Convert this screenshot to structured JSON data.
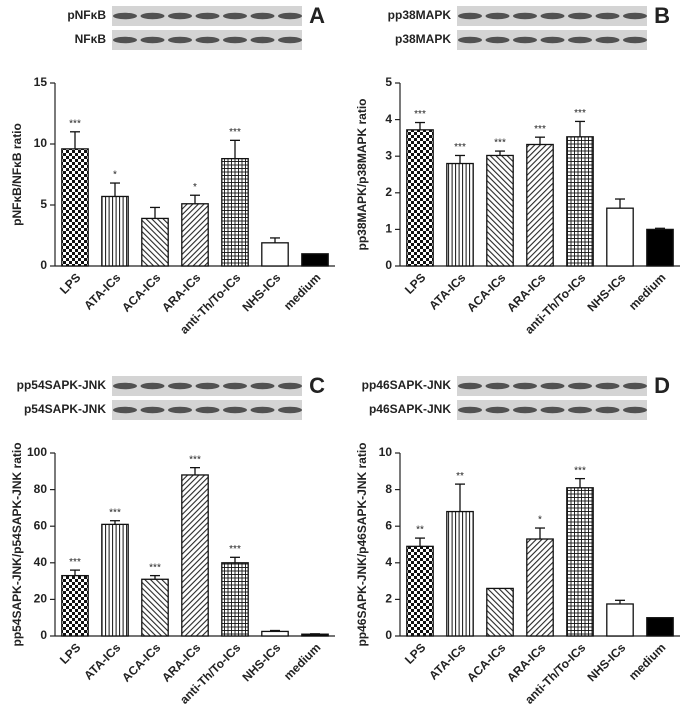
{
  "chart_data": [
    {
      "type": "bar",
      "panel": "A",
      "blot_labels": [
        "pNFκB",
        "NFκB"
      ],
      "ylabel": "pNFκB/NFκB ratio",
      "categories": [
        "LPS",
        "ATA-ICs",
        "ACA-ICs",
        "ARA-ICs",
        "anti-Th/To-ICs",
        "NHS-ICs",
        "medium"
      ],
      "values": [
        9.6,
        5.7,
        3.9,
        5.1,
        8.8,
        1.9,
        1.0
      ],
      "errors": [
        1.4,
        1.1,
        0.9,
        0.7,
        1.5,
        0.4,
        0
      ],
      "annotations": [
        "***",
        "*",
        null,
        "*",
        "***",
        null,
        null
      ],
      "patterns": [
        "checker",
        "vertical",
        "diag-down",
        "diag-up",
        "grid",
        "white",
        "black"
      ],
      "ylim": [
        0,
        15
      ],
      "yticks": [
        0,
        5,
        10,
        15
      ]
    },
    {
      "type": "bar",
      "panel": "B",
      "blot_labels": [
        "pp38MAPK",
        "p38MAPK"
      ],
      "ylabel": "pp38MAPK/p38MAPK ratio",
      "categories": [
        "LPS",
        "ATA-ICs",
        "ACA-ICs",
        "ARA-ICs",
        "anti-Th/To-ICs",
        "NHS-ICs",
        "medium"
      ],
      "values": [
        3.72,
        2.8,
        3.02,
        3.32,
        3.53,
        1.58,
        1.0
      ],
      "errors": [
        0.2,
        0.22,
        0.12,
        0.2,
        0.42,
        0.25,
        0.03
      ],
      "annotations": [
        "***",
        "***",
        "***",
        "***",
        "***",
        null,
        null
      ],
      "patterns": [
        "checker",
        "vertical",
        "diag-down",
        "diag-up",
        "grid",
        "white",
        "black"
      ],
      "ylim": [
        0,
        5
      ],
      "yticks": [
        0,
        1,
        2,
        3,
        4,
        5
      ]
    },
    {
      "type": "bar",
      "panel": "C",
      "blot_labels": [
        "pp54SAPK-JNK",
        "p54SAPK-JNK"
      ],
      "ylabel": "pp54SAPK-JNK/p54SAPK-JNK ratio",
      "categories": [
        "LPS",
        "ATA-ICs",
        "ACA-ICs",
        "ARA-ICs",
        "anti-Th/To-ICs",
        "NHS-ICs",
        "medium"
      ],
      "values": [
        33,
        61,
        31,
        88,
        40,
        2.5,
        1
      ],
      "errors": [
        3,
        2,
        2,
        4,
        3,
        0.5,
        0.2
      ],
      "annotations": [
        "***",
        "***",
        "***",
        "***",
        "***",
        null,
        null
      ],
      "patterns": [
        "checker",
        "vertical",
        "diag-down",
        "diag-up",
        "grid",
        "white",
        "black"
      ],
      "ylim": [
        0,
        100
      ],
      "yticks": [
        0,
        20,
        40,
        60,
        80,
        100
      ]
    },
    {
      "type": "bar",
      "panel": "D",
      "blot_labels": [
        "pp46SAPK-JNK",
        "p46SAPK-JNK"
      ],
      "ylabel": "pp46SAPK-JNK/p46SAPK-JNK ratio",
      "categories": [
        "LPS",
        "ATA-ICs",
        "ACA-ICs",
        "ARA-ICs",
        "anti-Th/To-ICs",
        "NHS-ICs",
        "medium"
      ],
      "values": [
        4.9,
        6.8,
        2.6,
        5.3,
        8.1,
        1.75,
        1.0
      ],
      "errors": [
        0.45,
        1.5,
        0,
        0.6,
        0.5,
        0.2,
        0
      ],
      "annotations": [
        "**",
        "**",
        null,
        "*",
        "***",
        null,
        null
      ],
      "patterns": [
        "checker",
        "vertical",
        "diag-down",
        "diag-up",
        "grid",
        "white",
        "black"
      ],
      "ylim": [
        0,
        10
      ],
      "yticks": [
        0,
        2,
        4,
        6,
        8,
        10
      ]
    }
  ]
}
